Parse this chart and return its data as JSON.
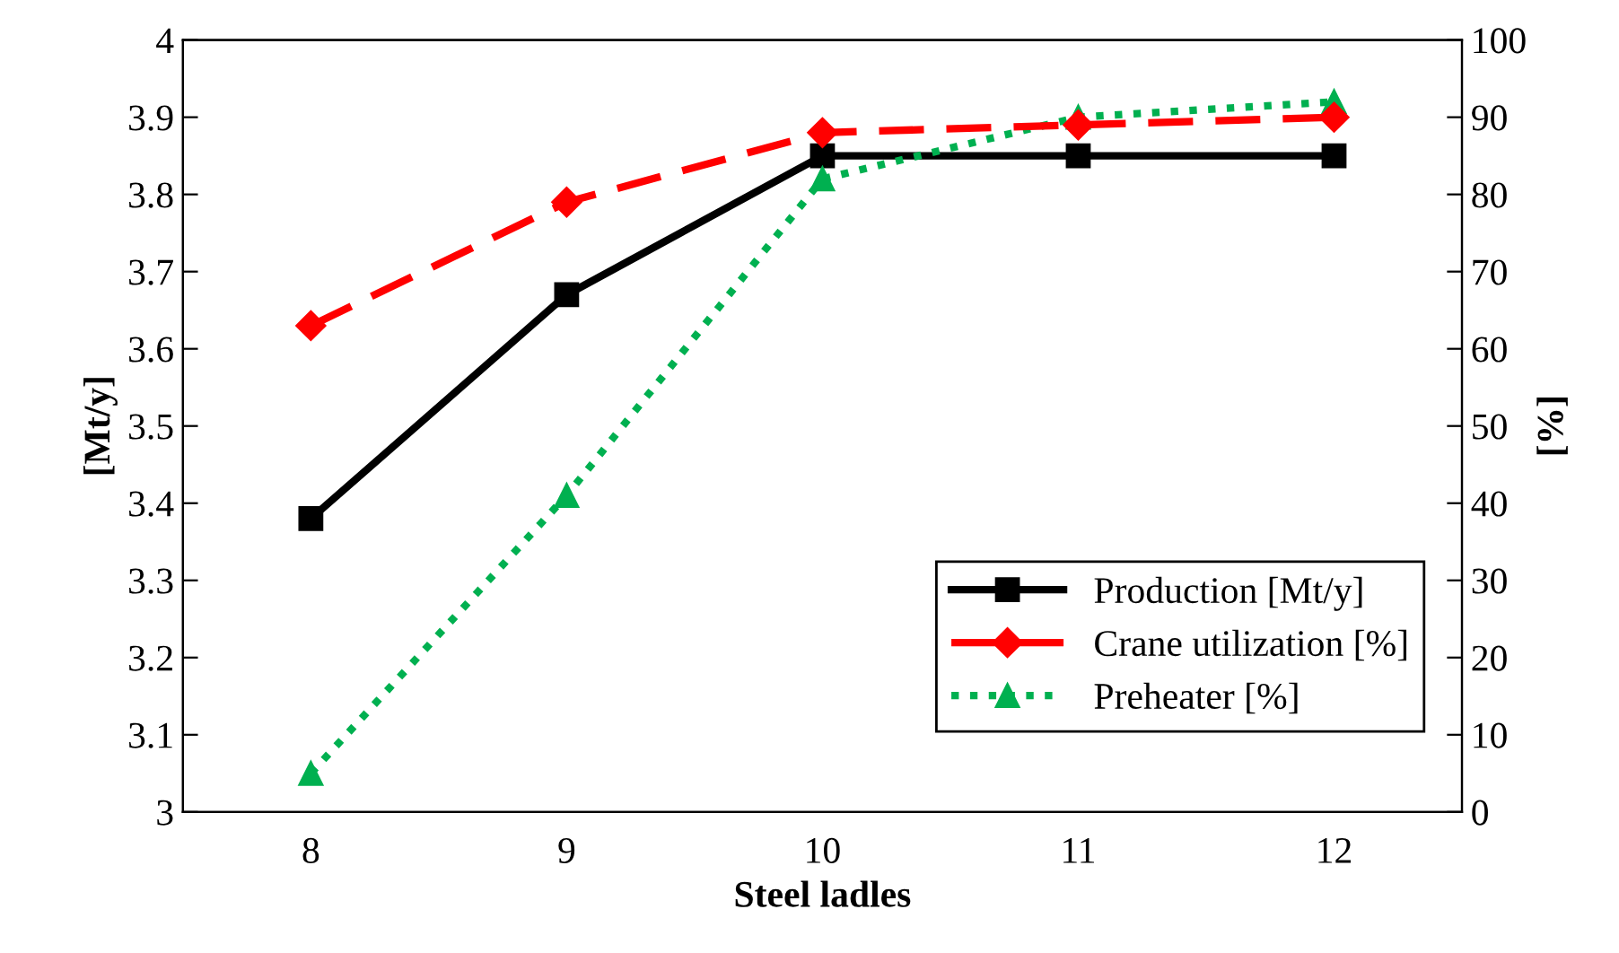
{
  "chart_data": {
    "type": "line",
    "xlabel": "Steel ladles",
    "ylabel": "[Mt/y]",
    "y2label": "[%]",
    "categories": [
      "8",
      "9",
      "10",
      "11",
      "12"
    ],
    "series": [
      {
        "name": "Production [Mt/y]",
        "color": "#000000",
        "values": [
          3.38,
          3.67,
          3.85,
          3.85,
          3.85
        ],
        "marker": "square",
        "line_style": "solid"
      },
      {
        "name": "Crane utilization [%]",
        "color": "#ff0000",
        "values": [
          63,
          79,
          88,
          89,
          90
        ],
        "axis": "y2",
        "marker": "diamond",
        "line_style": "dashed"
      },
      {
        "name": "Preheater [%]",
        "color": "#00b050",
        "values": [
          5,
          41,
          82,
          90,
          92
        ],
        "axis": "y2",
        "marker": "triangle",
        "line_style": "dotted"
      }
    ],
    "ylim": [
      3,
      4
    ],
    "yticks": [
      3,
      3.1,
      3.2,
      3.3,
      3.4,
      3.5,
      3.6,
      3.7,
      3.8,
      3.9,
      4
    ],
    "y2lim": [
      0,
      100
    ],
    "y2ticks": [
      0,
      10,
      20,
      30,
      40,
      50,
      60,
      70,
      80,
      90,
      100
    ],
    "grid": false,
    "legend": "bottom right"
  }
}
